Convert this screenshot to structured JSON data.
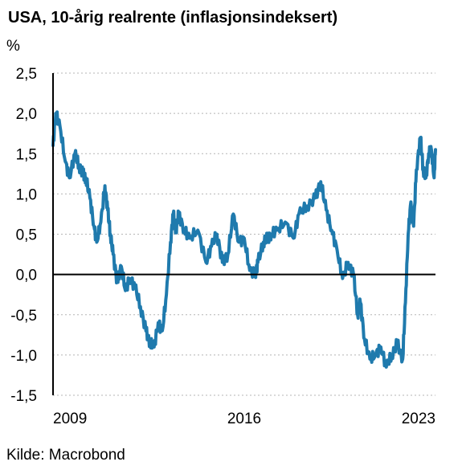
{
  "chart_data": {
    "type": "line",
    "title": "USA, 10-årig realrente (inflasjonsindeksert)",
    "ylabel": "%",
    "source": "Kilde: Macrobond",
    "xlim": [
      2009.0,
      2023.0
    ],
    "ylim": [
      -1.5,
      2.5
    ],
    "yticks": [
      "2,5",
      "2,0",
      "1,5",
      "1,0",
      "0,5",
      "0,0",
      "-0,5",
      "-1,0",
      "-1,5"
    ],
    "ytick_values": [
      2.5,
      2.0,
      1.5,
      1.0,
      0.5,
      0.0,
      -0.5,
      -1.0,
      -1.5
    ],
    "xticks": [
      "2009",
      "2016",
      "2023"
    ],
    "xtick_values": [
      2009.0,
      2016.0,
      2023.0
    ],
    "grid": true,
    "zero_line": true,
    "line_color": "#1f7aad",
    "series": [
      {
        "x": [
          2009.0,
          2009.1,
          2009.25,
          2009.45,
          2009.6,
          2009.8,
          2009.95,
          2010.1,
          2010.2,
          2010.35,
          2010.5,
          2010.6,
          2010.75,
          2010.9,
          2011.0,
          2011.1,
          2011.2,
          2011.35,
          2011.5,
          2011.65,
          2011.8,
          2012.0,
          2012.2,
          2012.4,
          2012.55,
          2012.7,
          2012.85,
          2013.0,
          2013.15,
          2013.3,
          2013.4,
          2013.5,
          2013.6,
          2013.8,
          2014.0,
          2014.3,
          2014.6,
          2014.8,
          2015.0,
          2015.2,
          2015.4,
          2015.6,
          2015.8,
          2016.0,
          2016.2,
          2016.4,
          2016.5,
          2016.7,
          2016.85,
          2017.0,
          2017.2,
          2017.5,
          2017.8,
          2018.0,
          2018.3,
          2018.6,
          2018.8,
          2019.0,
          2019.2,
          2019.4,
          2019.6,
          2019.8,
          2020.0,
          2020.15,
          2020.25,
          2020.4,
          2020.6,
          2020.8,
          2021.0,
          2021.2,
          2021.4,
          2021.6,
          2021.8,
          2021.9,
          2022.0,
          2022.1,
          2022.2,
          2022.3,
          2022.45,
          2022.55,
          2022.65,
          2022.75,
          2022.85,
          2022.95,
          2023.0
        ],
        "y": [
          1.6,
          2.0,
          1.85,
          1.4,
          1.2,
          1.5,
          1.35,
          1.25,
          1.2,
          0.95,
          0.6,
          0.4,
          0.65,
          1.1,
          0.8,
          0.5,
          0.25,
          -0.1,
          0.1,
          -0.2,
          -0.05,
          -0.15,
          -0.4,
          -0.7,
          -0.85,
          -0.9,
          -0.6,
          -0.7,
          -0.25,
          0.4,
          0.75,
          0.55,
          0.75,
          0.55,
          0.45,
          0.55,
          0.15,
          0.35,
          0.5,
          0.15,
          0.25,
          0.75,
          0.4,
          0.45,
          0.05,
          0.0,
          0.15,
          0.4,
          0.45,
          0.5,
          0.55,
          0.65,
          0.45,
          0.75,
          0.85,
          0.95,
          1.15,
          0.8,
          0.55,
          0.3,
          -0.05,
          0.15,
          0.0,
          -0.5,
          -0.35,
          -0.8,
          -1.05,
          -1.0,
          -0.9,
          -1.15,
          -1.0,
          -0.85,
          -1.05,
          -0.35,
          0.5,
          0.9,
          0.6,
          1.3,
          1.7,
          1.3,
          1.2,
          1.5,
          1.55,
          1.2,
          1.55
        ]
      }
    ]
  }
}
